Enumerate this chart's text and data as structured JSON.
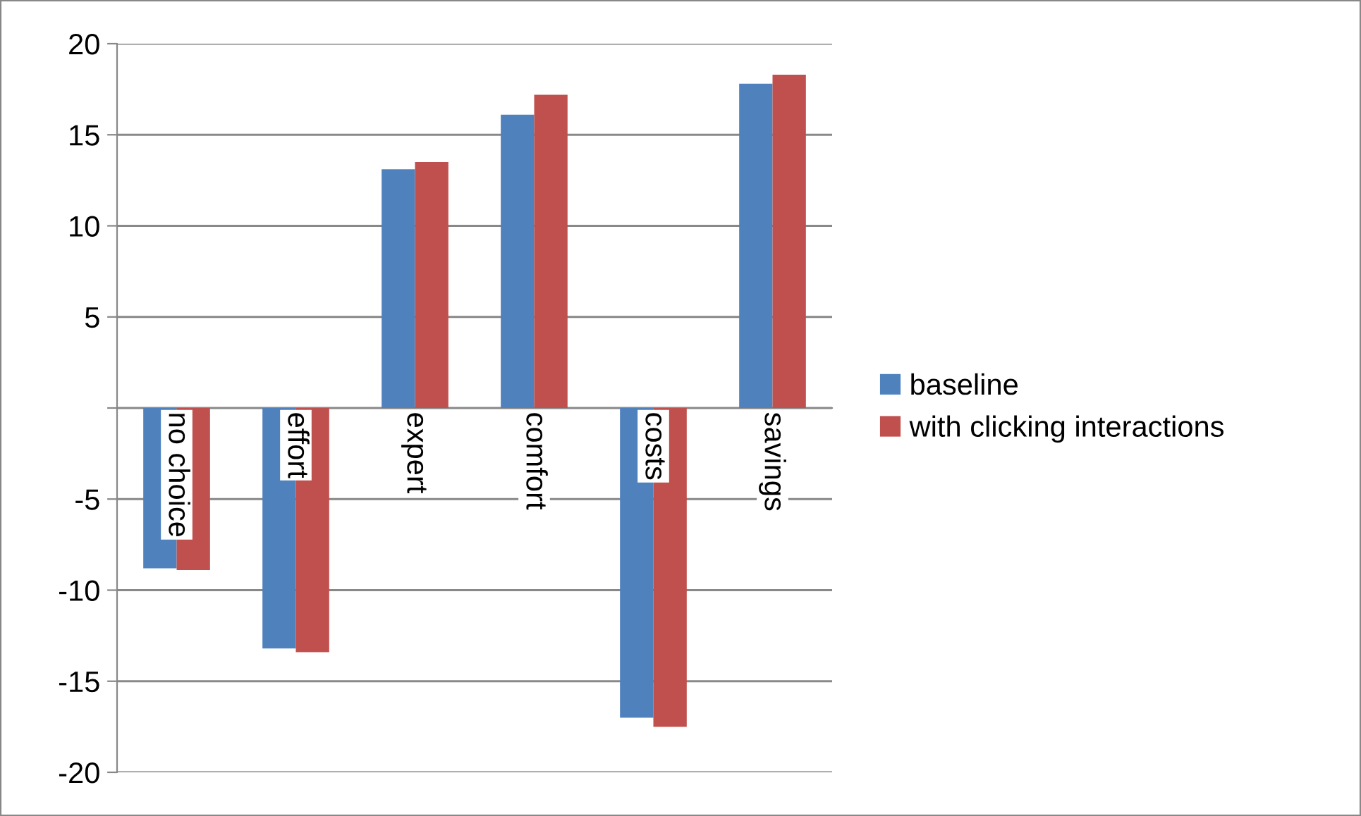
{
  "chart_data": {
    "type": "bar",
    "categories": [
      "no choice",
      "effort",
      "expert",
      "comfort",
      "costs",
      "savings"
    ],
    "series": [
      {
        "name": "baseline",
        "color": "#4f81bd",
        "values": [
          -8.8,
          -13.2,
          13.1,
          16.1,
          -17.0,
          17.8
        ]
      },
      {
        "name": "with clicking interactions",
        "color": "#c0504d",
        "values": [
          -8.9,
          -13.4,
          13.5,
          17.2,
          -17.5,
          18.3
        ]
      }
    ],
    "ylim": [
      -20,
      20
    ],
    "yticks": [
      -20,
      -15,
      -10,
      -5,
      {
        "value": 0,
        "label": null
      },
      5,
      10,
      15,
      20
    ],
    "grid": "y",
    "legend": "right"
  }
}
